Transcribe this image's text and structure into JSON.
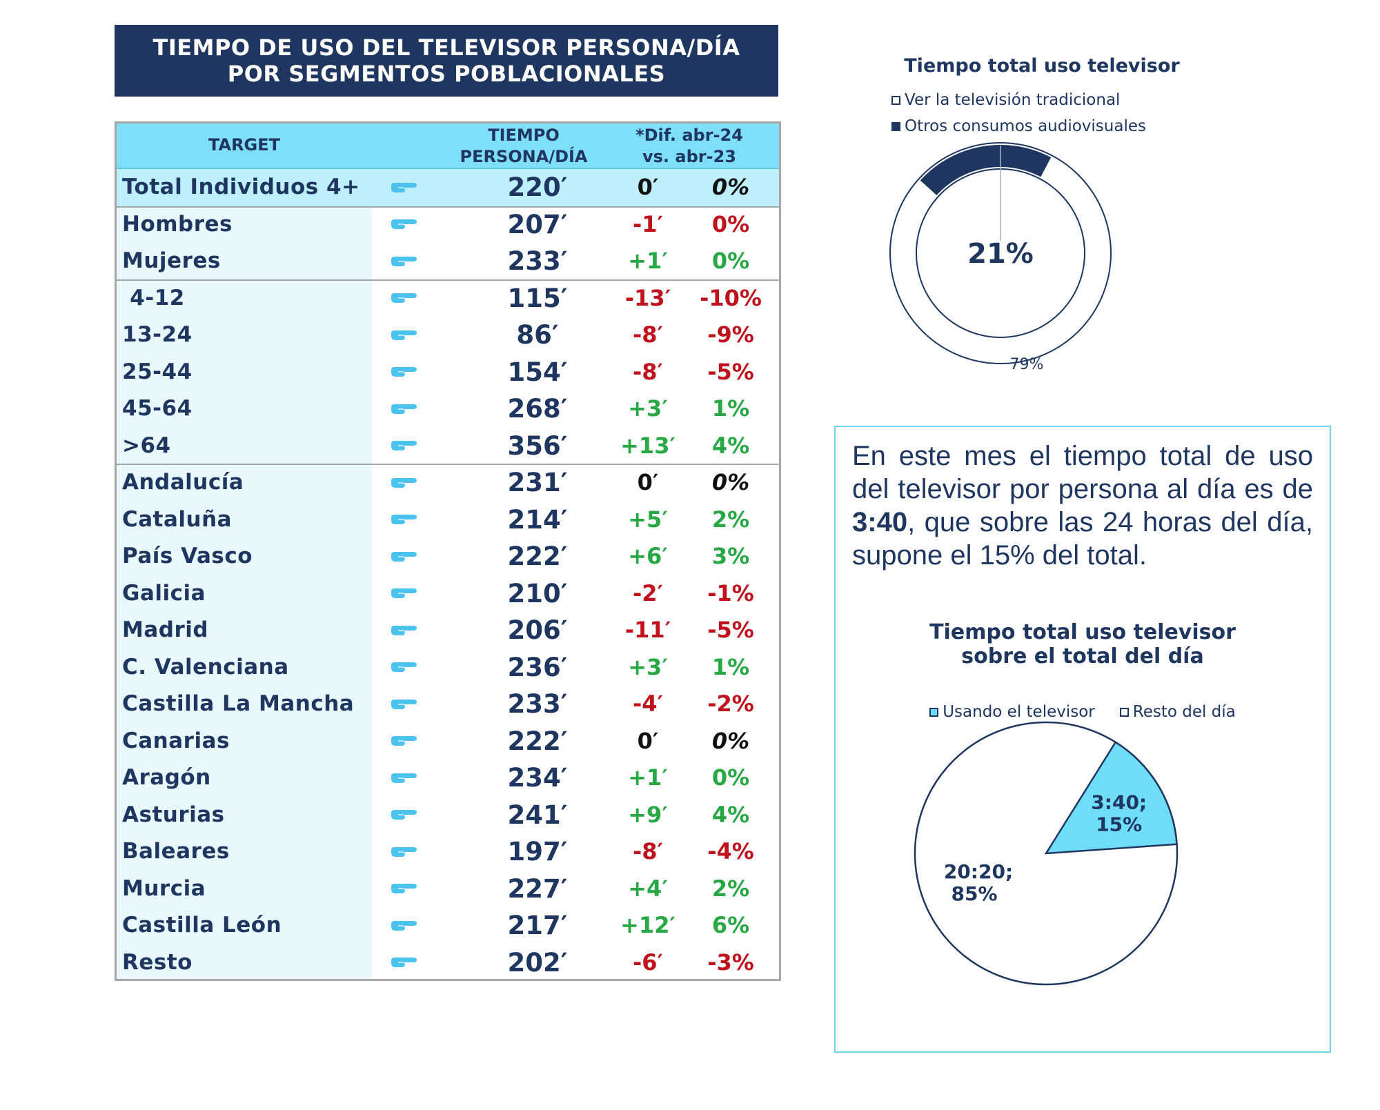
{
  "title": {
    "line1": "TIEMPO DE USO DEL TELEVISOR PERSONA/DÍA",
    "line2": "POR SEGMENTOS POBLACIONALES"
  },
  "table": {
    "headers": {
      "target": "TARGET",
      "time_line1": "TIEMPO",
      "time_line2": "PERSONA/DÍA",
      "dif_line1": "*Dif. abr-24",
      "dif_line2": "vs. abr-23"
    },
    "rows": [
      {
        "name": "Total Individuos 4+",
        "time": "220′",
        "dif": "0′",
        "pct": "0%",
        "trend": "neutral"
      },
      {
        "name": "Hombres",
        "time": "207′",
        "dif": "-1′",
        "pct": "0%",
        "trend": "down"
      },
      {
        "name": "Mujeres",
        "time": "233′",
        "dif": "+1′",
        "pct": "0%",
        "trend": "up"
      },
      {
        "name": " 4-12",
        "time": "115′",
        "dif": "-13′",
        "pct": "-10%",
        "trend": "down"
      },
      {
        "name": "13-24",
        "time": "86′",
        "dif": "-8′",
        "pct": "-9%",
        "trend": "down"
      },
      {
        "name": "25-44",
        "time": "154′",
        "dif": "-8′",
        "pct": "-5%",
        "trend": "down"
      },
      {
        "name": "45-64",
        "time": "268′",
        "dif": "+3′",
        "pct": "1%",
        "trend": "up"
      },
      {
        "name": ">64",
        "time": "356′",
        "dif": "+13′",
        "pct": "4%",
        "trend": "up"
      },
      {
        "name": "Andalucía",
        "time": "231′",
        "dif": "0′",
        "pct": "0%",
        "trend": "neutral"
      },
      {
        "name": "Cataluña",
        "time": "214′",
        "dif": "+5′",
        "pct": "2%",
        "trend": "up"
      },
      {
        "name": "País Vasco",
        "time": "222′",
        "dif": "+6′",
        "pct": "3%",
        "trend": "up"
      },
      {
        "name": "Galicia",
        "time": "210′",
        "dif": "-2′",
        "pct": "-1%",
        "trend": "down"
      },
      {
        "name": "Madrid",
        "time": "206′",
        "dif": "-11′",
        "pct": "-5%",
        "trend": "down"
      },
      {
        "name": "C. Valenciana",
        "time": "236′",
        "dif": "+3′",
        "pct": "1%",
        "trend": "up"
      },
      {
        "name": "Castilla La Mancha",
        "time": "233′",
        "dif": "-4′",
        "pct": "-2%",
        "trend": "down"
      },
      {
        "name": "Canarias",
        "time": "222′",
        "dif": "0′",
        "pct": "0%",
        "trend": "neutral"
      },
      {
        "name": "Aragón",
        "time": "234′",
        "dif": "+1′",
        "pct": "0%",
        "trend": "up"
      },
      {
        "name": "Asturias",
        "time": "241′",
        "dif": "+9′",
        "pct": "4%",
        "trend": "up"
      },
      {
        "name": "Baleares",
        "time": "197′",
        "dif": "-8′",
        "pct": "-4%",
        "trend": "down"
      },
      {
        "name": "Murcia",
        "time": "227′",
        "dif": "+4′",
        "pct": "2%",
        "trend": "up"
      },
      {
        "name": "Castilla León",
        "time": "217′",
        "dif": "+12′",
        "pct": "6%",
        "trend": "up"
      },
      {
        "name": "Resto",
        "time": "202′",
        "dif": "-6′",
        "pct": "-3%",
        "trend": "down"
      }
    ]
  },
  "donut": {
    "title": "Tiempo total uso televisor",
    "legend": [
      "Ver la televisión tradicional",
      "Otros consumos audiovisuales"
    ]
  },
  "info": {
    "text_before": "En este mes el tiempo total de uso del televisor por persona al día es de ",
    "highlight": "3:40",
    "text_after": ", que sobre las 24 horas del día, supone el 15% del total."
  },
  "pie": {
    "title_line1": "Tiempo total uso televisor",
    "title_line2": "sobre el total del día",
    "legend": [
      "Usando el televisor",
      "Resto del día"
    ]
  },
  "colors": {
    "navy": "#1f3660",
    "header_cyan": "#7fdff8",
    "light_cyan": "#e8f8fd",
    "up_green": "#27a844",
    "down_red": "#c0121d",
    "neutral_black": "#111111",
    "pie_cyan": "#6fdcf8",
    "icon_blue": "#4cc3ee"
  },
  "chart_data": [
    {
      "type": "pie",
      "variant": "donut",
      "title": "Tiempo total uso televisor",
      "categories": [
        "Ver la televisión tradicional",
        "Otros consumos audiovisuales"
      ],
      "values": [
        79,
        21
      ],
      "labels": [
        "79%",
        "21%"
      ]
    },
    {
      "type": "pie",
      "title": "Tiempo total uso televisor sobre el total del día",
      "categories": [
        "Usando el televisor",
        "Resto del día"
      ],
      "values": [
        15,
        85
      ],
      "labels": [
        "3:40;",
        "15%",
        "20:20;",
        "85%"
      ]
    }
  ]
}
